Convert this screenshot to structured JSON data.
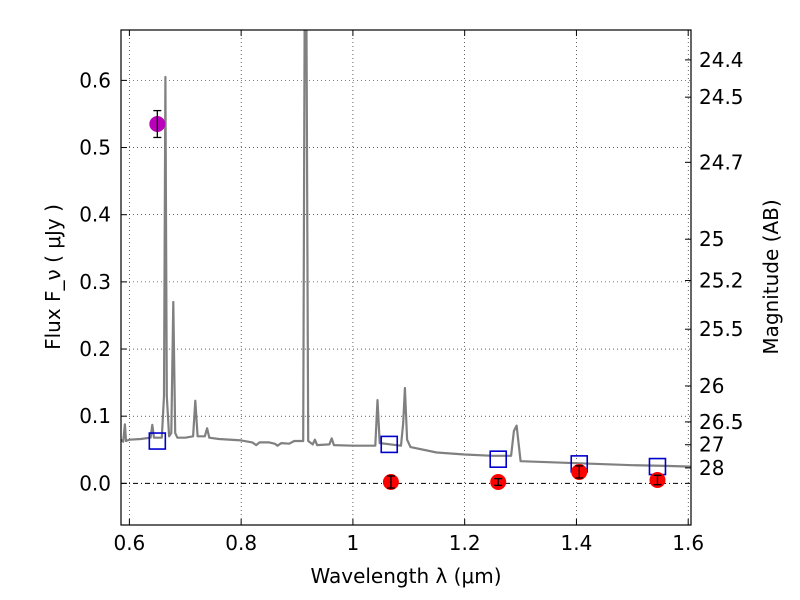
{
  "chart_data": {
    "type": "line",
    "xlabel": "Wavelength  λ (μm)",
    "ylabel": "Flux  F_ν  ( μJy )",
    "y2label": "Magnitude (AB)",
    "xlim": [
      0.585,
      1.605
    ],
    "ylim": [
      -0.062,
      0.675
    ],
    "grid": true,
    "x_ticks": [
      {
        "value": 0.6,
        "label": "0.6"
      },
      {
        "value": 0.8,
        "label": "0.8"
      },
      {
        "value": 1.0,
        "label": "1"
      },
      {
        "value": 1.2,
        "label": "1.2"
      },
      {
        "value": 1.4,
        "label": "1.4"
      },
      {
        "value": 1.6,
        "label": "1.6"
      }
    ],
    "y_ticks": [
      {
        "value": 0.0,
        "label": "0.0"
      },
      {
        "value": 0.1,
        "label": "0.1"
      },
      {
        "value": 0.2,
        "label": "0.2"
      },
      {
        "value": 0.3,
        "label": "0.3"
      },
      {
        "value": 0.4,
        "label": "0.4"
      },
      {
        "value": 0.5,
        "label": "0.5"
      },
      {
        "value": 0.6,
        "label": "0.6"
      }
    ],
    "y2_ticks": [
      {
        "flux": 0.6305,
        "label": "24.4"
      },
      {
        "flux": 0.575,
        "label": "24.5"
      },
      {
        "flux": 0.478,
        "label": "24.7"
      },
      {
        "flux": 0.3635,
        "label": "25"
      },
      {
        "flux": 0.302,
        "label": "25.2"
      },
      {
        "flux": 0.2295,
        "label": "25.5"
      },
      {
        "flux": 0.145,
        "label": "26"
      },
      {
        "flux": 0.0915,
        "label": "26.5"
      },
      {
        "flux": 0.0575,
        "label": "27"
      },
      {
        "flux": 0.023,
        "label": "28"
      }
    ],
    "colors": {
      "spectrum": "#808080",
      "model_photometry": "#0000cc",
      "observed_nir": "#ff0000",
      "observed_optical": "#bb00bb",
      "errorbar": "#000000",
      "zero_line": "#000000"
    },
    "spectrum": [
      [
        0.585,
        0.065
      ],
      [
        0.589,
        0.062
      ],
      [
        0.592,
        0.088
      ],
      [
        0.594,
        0.063
      ],
      [
        0.6,
        0.065
      ],
      [
        0.62,
        0.066
      ],
      [
        0.638,
        0.068
      ],
      [
        0.641,
        0.087
      ],
      [
        0.644,
        0.068
      ],
      [
        0.658,
        0.068
      ],
      [
        0.662,
        0.13
      ],
      [
        0.6645,
        0.605
      ],
      [
        0.667,
        0.13
      ],
      [
        0.671,
        0.07
      ],
      [
        0.675,
        0.075
      ],
      [
        0.6785,
        0.27
      ],
      [
        0.682,
        0.075
      ],
      [
        0.686,
        0.068
      ],
      [
        0.7,
        0.068
      ],
      [
        0.714,
        0.07
      ],
      [
        0.718,
        0.123
      ],
      [
        0.722,
        0.07
      ],
      [
        0.735,
        0.07
      ],
      [
        0.739,
        0.082
      ],
      [
        0.743,
        0.068
      ],
      [
        0.76,
        0.066
      ],
      [
        0.8,
        0.064
      ],
      [
        0.82,
        0.061
      ],
      [
        0.827,
        0.057
      ],
      [
        0.833,
        0.061
      ],
      [
        0.85,
        0.061
      ],
      [
        0.86,
        0.059
      ],
      [
        0.865,
        0.056
      ],
      [
        0.872,
        0.06
      ],
      [
        0.886,
        0.059
      ],
      [
        0.895,
        0.063
      ],
      [
        0.905,
        0.063
      ],
      [
        0.911,
        0.063
      ],
      [
        0.9135,
        0.675
      ],
      [
        0.917,
        0.675
      ],
      [
        0.92,
        0.063
      ],
      [
        0.928,
        0.058
      ],
      [
        0.932,
        0.065
      ],
      [
        0.936,
        0.057
      ],
      [
        0.958,
        0.058
      ],
      [
        0.962,
        0.067
      ],
      [
        0.966,
        0.057
      ],
      [
        1.0,
        0.056
      ],
      [
        1.04,
        0.056
      ],
      [
        1.044,
        0.124
      ],
      [
        1.048,
        0.06
      ],
      [
        1.086,
        0.056
      ],
      [
        1.09,
        0.09
      ],
      [
        1.093,
        0.142
      ],
      [
        1.097,
        0.065
      ],
      [
        1.103,
        0.054
      ],
      [
        1.15,
        0.046
      ],
      [
        1.2,
        0.043
      ],
      [
        1.25,
        0.041
      ],
      [
        1.283,
        0.041
      ],
      [
        1.288,
        0.078
      ],
      [
        1.293,
        0.086
      ],
      [
        1.3,
        0.033
      ],
      [
        1.4,
        0.03
      ],
      [
        1.5,
        0.027
      ],
      [
        1.56,
        0.026
      ],
      [
        1.605,
        0.025
      ]
    ],
    "model_photometry": [
      {
        "x": 0.65,
        "y": 0.063
      },
      {
        "x": 1.065,
        "y": 0.058
      },
      {
        "x": 1.26,
        "y": 0.036
      },
      {
        "x": 1.405,
        "y": 0.029
      },
      {
        "x": 1.545,
        "y": 0.025
      }
    ],
    "observed_nir": [
      {
        "x": 1.068,
        "y": 0.002,
        "err": 0.009
      },
      {
        "x": 1.26,
        "y": 0.002,
        "err": 0.005
      },
      {
        "x": 1.405,
        "y": 0.017,
        "err": 0.009
      },
      {
        "x": 1.545,
        "y": 0.005,
        "err": 0.007
      }
    ],
    "observed_optical": [
      {
        "x": 0.65,
        "y": 0.535,
        "err": 0.02
      }
    ]
  }
}
